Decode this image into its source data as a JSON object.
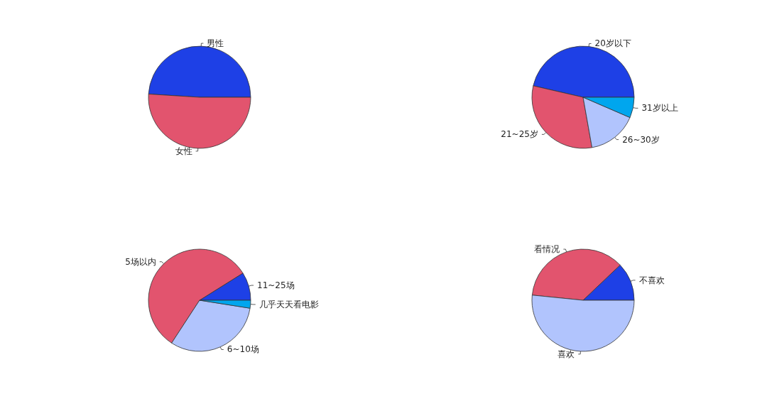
{
  "chart_data": [
    {
      "type": "pie",
      "categories": [
        "男性",
        "女性"
      ],
      "values": [
        49,
        51
      ],
      "colors": [
        "#1e40e6",
        "#e2546e"
      ]
    },
    {
      "type": "pie",
      "categories": [
        "20岁以下",
        "21~25岁",
        "26~30岁",
        "31岁以上"
      ],
      "values": [
        46.4,
        31.4,
        15.7,
        6.5
      ],
      "colors": [
        "#1e40e6",
        "#e2546e",
        "#b1c4fd",
        "#00a6ee"
      ]
    },
    {
      "type": "pie",
      "categories": [
        "11~25场",
        "5场以内",
        "6~10场",
        "几乎天天看电影"
      ],
      "values": [
        8.9,
        56.9,
        31.7,
        2.5
      ],
      "colors": [
        "#1e40e6",
        "#e2546e",
        "#b1c4fd",
        "#00a6ee"
      ]
    },
    {
      "type": "pie",
      "categories": [
        "不喜欢",
        "看情况",
        "喜欢"
      ],
      "values": [
        12.1,
        36.3,
        51.6
      ],
      "colors": [
        "#1e40e6",
        "#e2546e",
        "#b1c4fd"
      ]
    }
  ]
}
